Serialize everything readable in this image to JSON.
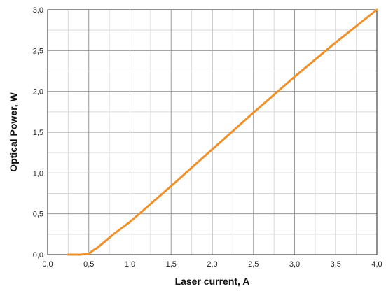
{
  "chart_data": {
    "type": "line",
    "title": "",
    "xlabel": "Laser current, A",
    "ylabel": "Optical Power, W",
    "xlim": [
      0.0,
      4.0
    ],
    "ylim": [
      0.0,
      3.0
    ],
    "x_ticks": [
      0.0,
      0.5,
      1.0,
      1.5,
      2.0,
      2.5,
      3.0,
      3.5,
      4.0
    ],
    "y_ticks": [
      0.0,
      0.5,
      1.0,
      1.5,
      2.0,
      2.5,
      3.0
    ],
    "x_tick_labels": [
      "0,0",
      "0,5",
      "1,0",
      "1,5",
      "2,0",
      "2,5",
      "3,0",
      "3,5",
      "4,0"
    ],
    "y_tick_labels": [
      "0,0",
      "0,5",
      "1,0",
      "1,5",
      "2,0",
      "2,5",
      "3,0"
    ],
    "grid": true,
    "minor_grid": true,
    "series": [
      {
        "color": "#f0902a",
        "x": [
          0.25,
          0.4,
          0.5,
          0.55,
          0.6,
          0.8,
          1.0,
          1.5,
          2.0,
          2.5,
          3.0,
          3.5,
          4.0
        ],
        "y": [
          0.0,
          0.0,
          0.01,
          0.05,
          0.08,
          0.25,
          0.4,
          0.84,
          1.29,
          1.74,
          2.18,
          2.6,
          3.0
        ]
      }
    ]
  }
}
